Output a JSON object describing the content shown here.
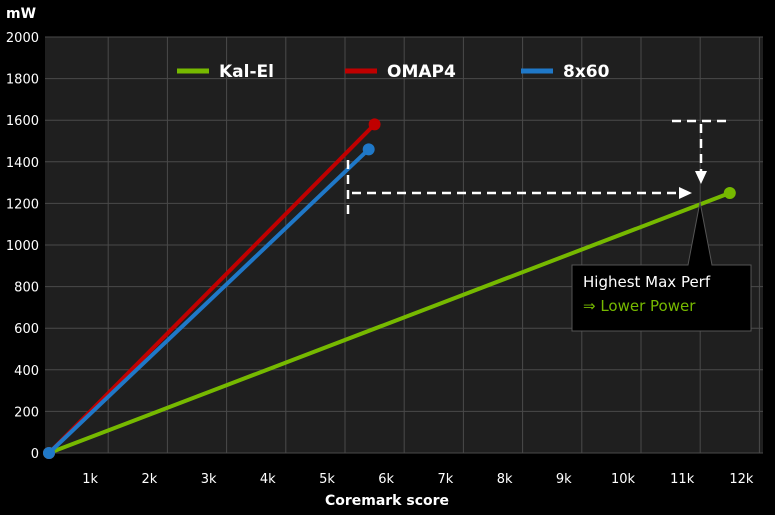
{
  "chart_data": {
    "type": "line",
    "title": "",
    "xlabel": "Coremark score",
    "ylabel": "mW",
    "xlim": [
      0,
      12000
    ],
    "ylim": [
      0,
      2000
    ],
    "x_ticks": [
      {
        "value": 1000,
        "label": "1k"
      },
      {
        "value": 2000,
        "label": "2k"
      },
      {
        "value": 3000,
        "label": "3k"
      },
      {
        "value": 4000,
        "label": "4k"
      },
      {
        "value": 5000,
        "label": "5k"
      },
      {
        "value": 6000,
        "label": "6k"
      },
      {
        "value": 7000,
        "label": "7k"
      },
      {
        "value": 8000,
        "label": "8k"
      },
      {
        "value": 9000,
        "label": "9k"
      },
      {
        "value": 10000,
        "label": "10k"
      },
      {
        "value": 11000,
        "label": "11k"
      },
      {
        "value": 12000,
        "label": "12k"
      }
    ],
    "y_ticks": [
      0,
      200,
      400,
      600,
      800,
      1000,
      1200,
      1400,
      1600,
      1800,
      2000
    ],
    "grid": true,
    "legend_position": "top",
    "series": [
      {
        "name": "Kal-El",
        "color": "#76b900",
        "x": [
          0,
          11500
        ],
        "y": [
          0,
          1250
        ]
      },
      {
        "name": "OMAP4",
        "color": "#c00000",
        "x": [
          0,
          5500
        ],
        "y": [
          0,
          1580
        ]
      },
      {
        "name": "8x60",
        "color": "#1f78c8",
        "x": [
          0,
          5400
        ],
        "y": [
          0,
          1460
        ]
      }
    ],
    "annotations": {
      "callout": {
        "line1": "Highest Max Perf",
        "line2": "⇒ Lower Power",
        "line1_color": "#ffffff",
        "line2_color": "#76b900"
      }
    }
  }
}
